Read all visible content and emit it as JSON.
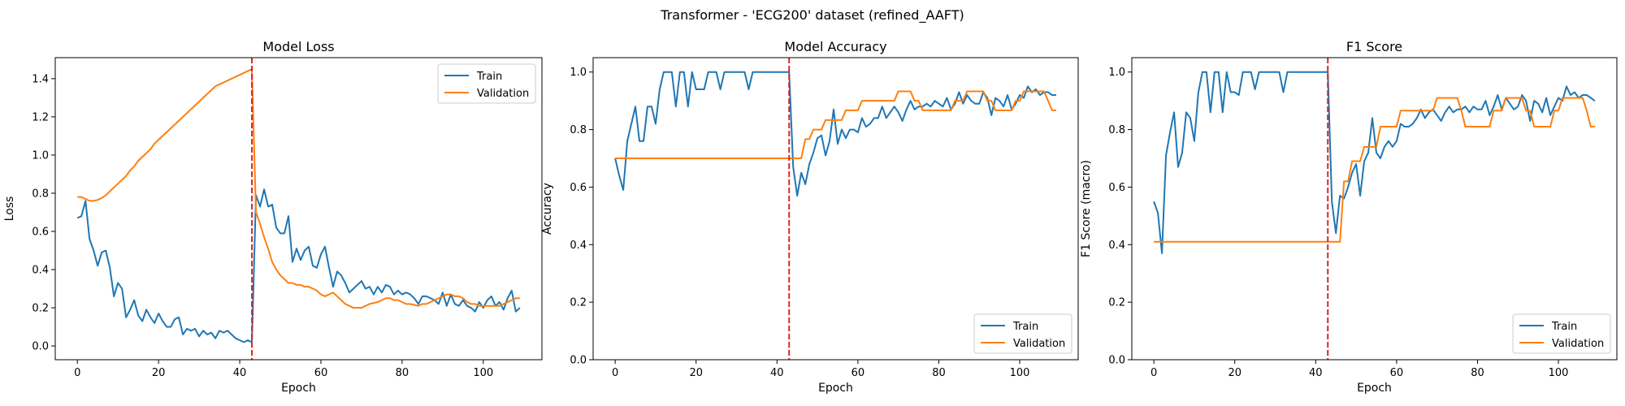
{
  "suptitle": "Transformer - 'ECG200' dataset (refined_AAFT)",
  "colors": {
    "train": "#1f77b4",
    "validation": "#ff7f0e",
    "marker": "#d62728"
  },
  "chart_data": [
    {
      "type": "line",
      "title": "Model Loss",
      "xlabel": "Epoch",
      "ylabel": "Loss",
      "xlim": [
        -5.45,
        114.45
      ],
      "ylim": [
        -0.072,
        1.51
      ],
      "xticks": [
        0,
        20,
        40,
        60,
        80,
        100
      ],
      "yticks": [
        0.0,
        0.2,
        0.4,
        0.6,
        0.8,
        1.0,
        1.2,
        1.4
      ],
      "ytick_decimals": 1,
      "vline_x": 43,
      "legend": "top-right",
      "series": [
        {
          "name": "Train",
          "color": "#1f77b4",
          "values": [
            0.67,
            0.68,
            0.76,
            0.56,
            0.5,
            0.42,
            0.49,
            0.5,
            0.41,
            0.26,
            0.33,
            0.3,
            0.15,
            0.19,
            0.24,
            0.16,
            0.13,
            0.19,
            0.15,
            0.12,
            0.17,
            0.13,
            0.1,
            0.1,
            0.14,
            0.15,
            0.06,
            0.09,
            0.08,
            0.09,
            0.05,
            0.08,
            0.06,
            0.07,
            0.04,
            0.08,
            0.07,
            0.08,
            0.06,
            0.04,
            0.03,
            0.02,
            0.03,
            0.02,
            0.79,
            0.73,
            0.82,
            0.73,
            0.74,
            0.62,
            0.59,
            0.59,
            0.68,
            0.44,
            0.51,
            0.45,
            0.5,
            0.52,
            0.42,
            0.41,
            0.48,
            0.52,
            0.41,
            0.31,
            0.39,
            0.37,
            0.33,
            0.28,
            0.3,
            0.32,
            0.34,
            0.3,
            0.31,
            0.27,
            0.31,
            0.28,
            0.32,
            0.31,
            0.27,
            0.29,
            0.27,
            0.28,
            0.27,
            0.25,
            0.22,
            0.26,
            0.26,
            0.25,
            0.24,
            0.22,
            0.28,
            0.21,
            0.27,
            0.22,
            0.21,
            0.24,
            0.21,
            0.2,
            0.18,
            0.23,
            0.2,
            0.24,
            0.26,
            0.21,
            0.23,
            0.19,
            0.25,
            0.29,
            0.18,
            0.2
          ]
        },
        {
          "name": "Validation",
          "color": "#ff7f0e",
          "values": [
            0.78,
            0.78,
            0.77,
            0.76,
            0.76,
            0.765,
            0.775,
            0.79,
            0.81,
            0.83,
            0.85,
            0.87,
            0.89,
            0.92,
            0.94,
            0.97,
            0.99,
            1.01,
            1.03,
            1.06,
            1.08,
            1.1,
            1.12,
            1.14,
            1.16,
            1.18,
            1.2,
            1.22,
            1.24,
            1.26,
            1.28,
            1.3,
            1.32,
            1.34,
            1.36,
            1.37,
            1.38,
            1.39,
            1.4,
            1.41,
            1.42,
            1.43,
            1.44,
            1.45,
            0.7,
            0.64,
            0.57,
            0.51,
            0.44,
            0.4,
            0.37,
            0.35,
            0.33,
            0.33,
            0.32,
            0.32,
            0.31,
            0.31,
            0.3,
            0.29,
            0.27,
            0.26,
            0.27,
            0.28,
            0.26,
            0.24,
            0.22,
            0.21,
            0.2,
            0.2,
            0.2,
            0.21,
            0.22,
            0.225,
            0.23,
            0.24,
            0.25,
            0.25,
            0.24,
            0.24,
            0.23,
            0.22,
            0.22,
            0.215,
            0.21,
            0.22,
            0.22,
            0.23,
            0.24,
            0.25,
            0.26,
            0.27,
            0.27,
            0.26,
            0.26,
            0.25,
            0.23,
            0.22,
            0.22,
            0.21,
            0.21,
            0.21,
            0.21,
            0.21,
            0.21,
            0.22,
            0.23,
            0.24,
            0.25,
            0.25
          ]
        }
      ]
    },
    {
      "type": "line",
      "title": "Model Accuracy",
      "xlabel": "Epoch",
      "ylabel": "Accuracy",
      "xlim": [
        -5.45,
        114.45
      ],
      "ylim": [
        0.0,
        1.05
      ],
      "xticks": [
        0,
        20,
        40,
        60,
        80,
        100
      ],
      "yticks": [
        0.0,
        0.2,
        0.4,
        0.6,
        0.8,
        1.0
      ],
      "ytick_decimals": 1,
      "vline_x": 43,
      "legend": "bottom-right",
      "series": [
        {
          "name": "Train",
          "color": "#1f77b4",
          "values": [
            0.7,
            0.64,
            0.59,
            0.76,
            0.82,
            0.88,
            0.76,
            0.76,
            0.88,
            0.88,
            0.82,
            0.94,
            1.0,
            1.0,
            1.0,
            0.88,
            1.0,
            1.0,
            0.88,
            1.0,
            0.94,
            0.94,
            0.94,
            1.0,
            1.0,
            1.0,
            0.94,
            1.0,
            1.0,
            1.0,
            1.0,
            1.0,
            1.0,
            0.94,
            1.0,
            1.0,
            1.0,
            1.0,
            1.0,
            1.0,
            1.0,
            1.0,
            1.0,
            1.0,
            0.67,
            0.57,
            0.65,
            0.61,
            0.68,
            0.72,
            0.77,
            0.78,
            0.71,
            0.76,
            0.87,
            0.75,
            0.8,
            0.77,
            0.8,
            0.8,
            0.79,
            0.84,
            0.81,
            0.82,
            0.84,
            0.84,
            0.88,
            0.84,
            0.86,
            0.88,
            0.86,
            0.83,
            0.87,
            0.9,
            0.87,
            0.88,
            0.88,
            0.89,
            0.88,
            0.9,
            0.89,
            0.88,
            0.91,
            0.87,
            0.89,
            0.93,
            0.89,
            0.92,
            0.9,
            0.89,
            0.89,
            0.93,
            0.91,
            0.85,
            0.91,
            0.9,
            0.88,
            0.92,
            0.87,
            0.89,
            0.92,
            0.91,
            0.95,
            0.93,
            0.94,
            0.92,
            0.93,
            0.93,
            0.92,
            0.92
          ]
        },
        {
          "name": "Validation",
          "color": "#ff7f0e",
          "values": [
            0.7,
            0.7,
            0.7,
            0.7,
            0.7,
            0.7,
            0.7,
            0.7,
            0.7,
            0.7,
            0.7,
            0.7,
            0.7,
            0.7,
            0.7,
            0.7,
            0.7,
            0.7,
            0.7,
            0.7,
            0.7,
            0.7,
            0.7,
            0.7,
            0.7,
            0.7,
            0.7,
            0.7,
            0.7,
            0.7,
            0.7,
            0.7,
            0.7,
            0.7,
            0.7,
            0.7,
            0.7,
            0.7,
            0.7,
            0.7,
            0.7,
            0.7,
            0.7,
            0.7,
            0.7,
            0.7,
            0.7,
            0.767,
            0.767,
            0.8,
            0.8,
            0.8,
            0.833,
            0.833,
            0.833,
            0.833,
            0.833,
            0.867,
            0.867,
            0.867,
            0.867,
            0.9,
            0.9,
            0.9,
            0.9,
            0.9,
            0.9,
            0.9,
            0.9,
            0.9,
            0.933,
            0.933,
            0.933,
            0.933,
            0.9,
            0.9,
            0.867,
            0.867,
            0.867,
            0.867,
            0.867,
            0.867,
            0.867,
            0.867,
            0.9,
            0.9,
            0.9,
            0.933,
            0.933,
            0.933,
            0.933,
            0.933,
            0.9,
            0.9,
            0.867,
            0.867,
            0.867,
            0.867,
            0.867,
            0.9,
            0.9,
            0.933,
            0.933,
            0.933,
            0.933,
            0.933,
            0.933,
            0.9,
            0.867,
            0.867
          ]
        }
      ]
    },
    {
      "type": "line",
      "title": "F1 Score",
      "xlabel": "Epoch",
      "ylabel": "F1 Score (macro)",
      "xlim": [
        -5.45,
        114.45
      ],
      "ylim": [
        0.0,
        1.05
      ],
      "xticks": [
        0,
        20,
        40,
        60,
        80,
        100
      ],
      "yticks": [
        0.0,
        0.2,
        0.4,
        0.6,
        0.8,
        1.0
      ],
      "ytick_decimals": 1,
      "vline_x": 43,
      "legend": "bottom-right",
      "series": [
        {
          "name": "Train",
          "color": "#1f77b4",
          "values": [
            0.55,
            0.51,
            0.37,
            0.71,
            0.79,
            0.86,
            0.67,
            0.72,
            0.86,
            0.84,
            0.76,
            0.93,
            1.0,
            1.0,
            0.86,
            1.0,
            1.0,
            0.86,
            1.0,
            0.93,
            0.93,
            0.92,
            1.0,
            1.0,
            1.0,
            0.94,
            1.0,
            1.0,
            1.0,
            1.0,
            1.0,
            1.0,
            0.93,
            1.0,
            1.0,
            1.0,
            1.0,
            1.0,
            1.0,
            1.0,
            1.0,
            1.0,
            1.0,
            1.0,
            0.55,
            0.44,
            0.57,
            0.56,
            0.6,
            0.65,
            0.68,
            0.57,
            0.69,
            0.72,
            0.84,
            0.72,
            0.7,
            0.74,
            0.76,
            0.74,
            0.76,
            0.82,
            0.81,
            0.81,
            0.82,
            0.84,
            0.87,
            0.84,
            0.86,
            0.87,
            0.85,
            0.83,
            0.86,
            0.88,
            0.86,
            0.87,
            0.87,
            0.88,
            0.86,
            0.88,
            0.87,
            0.87,
            0.9,
            0.85,
            0.88,
            0.92,
            0.87,
            0.91,
            0.89,
            0.87,
            0.88,
            0.92,
            0.9,
            0.83,
            0.9,
            0.89,
            0.86,
            0.91,
            0.85,
            0.88,
            0.91,
            0.9,
            0.95,
            0.92,
            0.93,
            0.91,
            0.92,
            0.92,
            0.91,
            0.9
          ]
        },
        {
          "name": "Validation",
          "color": "#ff7f0e",
          "values": [
            0.41,
            0.41,
            0.41,
            0.41,
            0.41,
            0.41,
            0.41,
            0.41,
            0.41,
            0.41,
            0.41,
            0.41,
            0.41,
            0.41,
            0.41,
            0.41,
            0.41,
            0.41,
            0.41,
            0.41,
            0.41,
            0.41,
            0.41,
            0.41,
            0.41,
            0.41,
            0.41,
            0.41,
            0.41,
            0.41,
            0.41,
            0.41,
            0.41,
            0.41,
            0.41,
            0.41,
            0.41,
            0.41,
            0.41,
            0.41,
            0.41,
            0.41,
            0.41,
            0.41,
            0.41,
            0.41,
            0.41,
            0.62,
            0.62,
            0.69,
            0.69,
            0.69,
            0.74,
            0.74,
            0.74,
            0.74,
            0.81,
            0.81,
            0.81,
            0.81,
            0.81,
            0.866,
            0.866,
            0.866,
            0.866,
            0.866,
            0.866,
            0.866,
            0.866,
            0.866,
            0.91,
            0.91,
            0.91,
            0.91,
            0.91,
            0.91,
            0.866,
            0.81,
            0.81,
            0.81,
            0.81,
            0.81,
            0.81,
            0.81,
            0.866,
            0.866,
            0.866,
            0.91,
            0.91,
            0.91,
            0.91,
            0.91,
            0.866,
            0.866,
            0.81,
            0.81,
            0.81,
            0.81,
            0.81,
            0.866,
            0.866,
            0.91,
            0.91,
            0.91,
            0.91,
            0.91,
            0.91,
            0.866,
            0.81,
            0.81
          ]
        }
      ]
    }
  ]
}
